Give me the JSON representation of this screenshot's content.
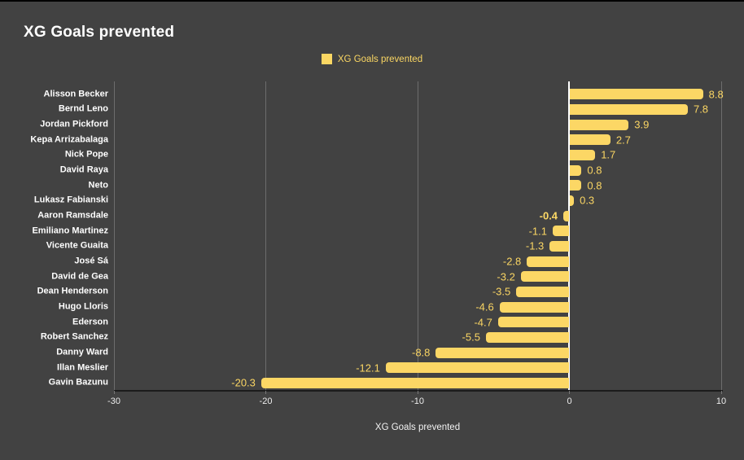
{
  "title": "XG Goals prevented",
  "legend": {
    "label": "XG Goals prevented",
    "swatch_color": "#fbd763"
  },
  "x_axis": {
    "label": "XG Goals prevented",
    "tick_labels": [
      "-30",
      "-20",
      "-10",
      "0",
      "10"
    ],
    "tick_values": [
      -30,
      -20,
      -10,
      0,
      10
    ],
    "min": -30,
    "max": 10
  },
  "chart_data": {
    "type": "bar",
    "orientation": "horizontal",
    "title": "XG Goals prevented",
    "xlabel": "XG Goals prevented",
    "xlim": [
      -30,
      10
    ],
    "grid": true,
    "legend_position": "top-center",
    "series_name": "XG Goals prevented",
    "categories": [
      "Alisson Becker",
      "Bernd Leno",
      "Jordan Pickford",
      "Kepa Arrizabalaga",
      "Nick Pope",
      "David Raya",
      "Neto",
      "Lukasz Fabianski",
      "Aaron Ramsdale",
      "Emiliano Martinez",
      "Vicente Guaita",
      "José Sá",
      "David de Gea",
      "Dean Henderson",
      "Hugo Lloris",
      "Ederson",
      "Robert Sanchez",
      "Danny Ward",
      "Illan Meslier",
      "Gavin Bazunu"
    ],
    "values": [
      8.8,
      7.8,
      3.9,
      2.7,
      1.7,
      0.8,
      0.8,
      0.3,
      -0.4,
      -1.1,
      -1.3,
      -2.8,
      -3.2,
      -3.5,
      -4.6,
      -4.7,
      -5.5,
      -8.8,
      -12.1,
      -20.3
    ],
    "value_labels": [
      "8.8",
      "7.8",
      "3.9",
      "2.7",
      "1.7",
      "0.8",
      "0.8",
      "0.3",
      "-0.4",
      "-1.1",
      "-1.3",
      "-2.8",
      "-3.2",
      "-3.5",
      "-4.6",
      "-4.7",
      "-5.5",
      "-8.8",
      "-12.1",
      "-20.3"
    ],
    "highlight_index": 8
  },
  "colors": {
    "background": "#424242",
    "bar": "#fcd765",
    "value_label": "#fad563",
    "gridline": "#6d6d6d",
    "zero_line": "#ffffff",
    "axis_line": "#1b1b1b",
    "text": "#ffffff"
  }
}
